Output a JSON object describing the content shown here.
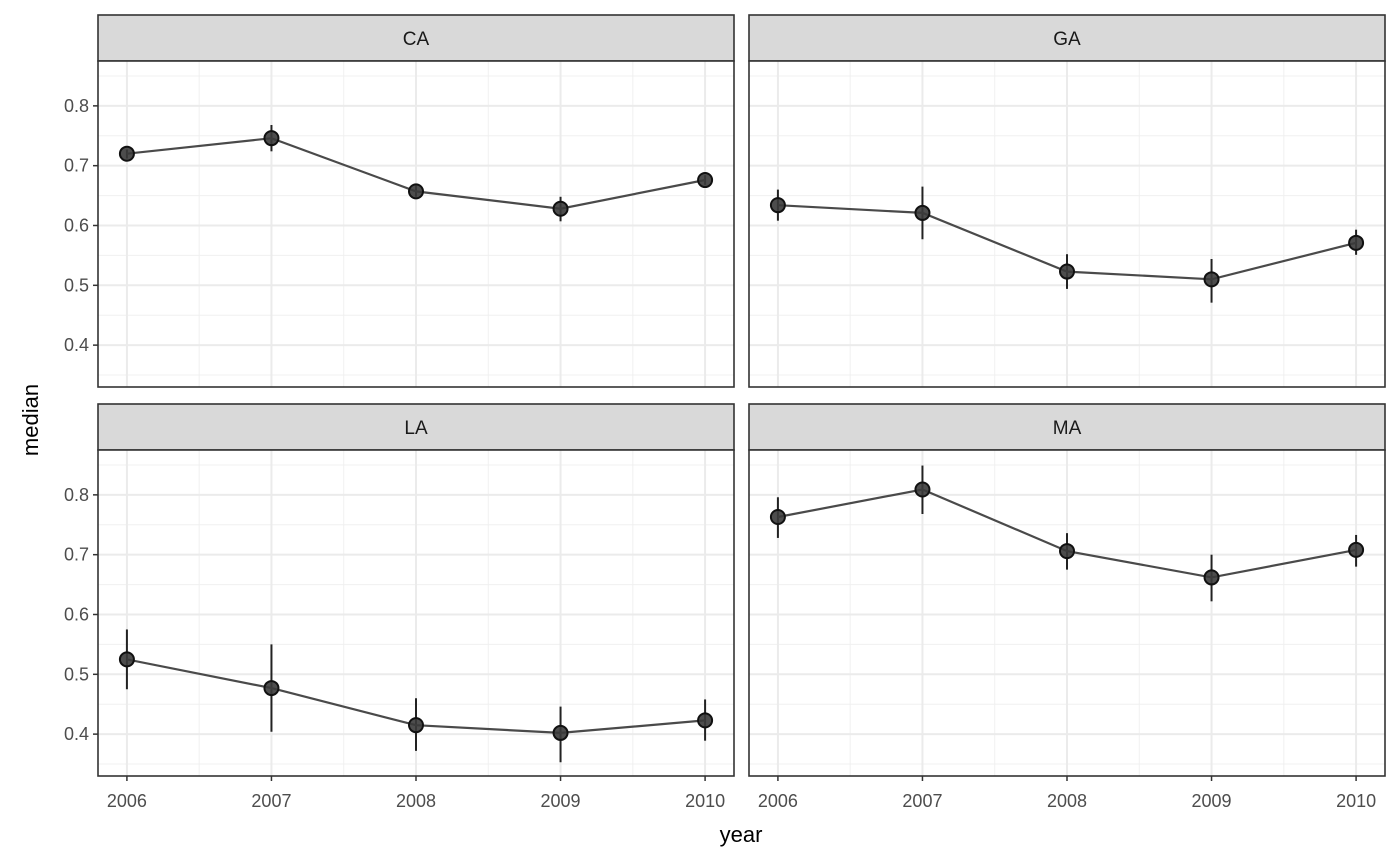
{
  "chart_data": {
    "type": "line",
    "xlabel": "year",
    "ylabel": "median",
    "x": [
      2006,
      2007,
      2008,
      2009,
      2010
    ],
    "x_ticks": [
      "2006",
      "2007",
      "2008",
      "2009",
      "2010"
    ],
    "y_ticks": [
      "0.4",
      "0.5",
      "0.6",
      "0.7",
      "0.8"
    ],
    "ylim": [
      0.33,
      0.875
    ],
    "grid": true,
    "facets": [
      {
        "name": "CA",
        "values": [
          0.72,
          0.746,
          0.657,
          0.628,
          0.676
        ],
        "lower": [
          0.712,
          0.724,
          0.648,
          0.607,
          0.668
        ],
        "upper": [
          0.727,
          0.768,
          0.667,
          0.648,
          0.684
        ]
      },
      {
        "name": "GA",
        "values": [
          0.634,
          0.621,
          0.523,
          0.51,
          0.571
        ],
        "lower": [
          0.608,
          0.577,
          0.494,
          0.471,
          0.551
        ],
        "upper": [
          0.66,
          0.665,
          0.552,
          0.544,
          0.593
        ]
      },
      {
        "name": "LA",
        "values": [
          0.525,
          0.477,
          0.415,
          0.402,
          0.423
        ],
        "lower": [
          0.475,
          0.404,
          0.372,
          0.353,
          0.389
        ],
        "upper": [
          0.575,
          0.55,
          0.46,
          0.446,
          0.458
        ]
      },
      {
        "name": "MA",
        "values": [
          0.763,
          0.809,
          0.706,
          0.662,
          0.708
        ],
        "lower": [
          0.728,
          0.768,
          0.675,
          0.622,
          0.68
        ],
        "upper": [
          0.796,
          0.849,
          0.736,
          0.7,
          0.733
        ]
      }
    ]
  }
}
